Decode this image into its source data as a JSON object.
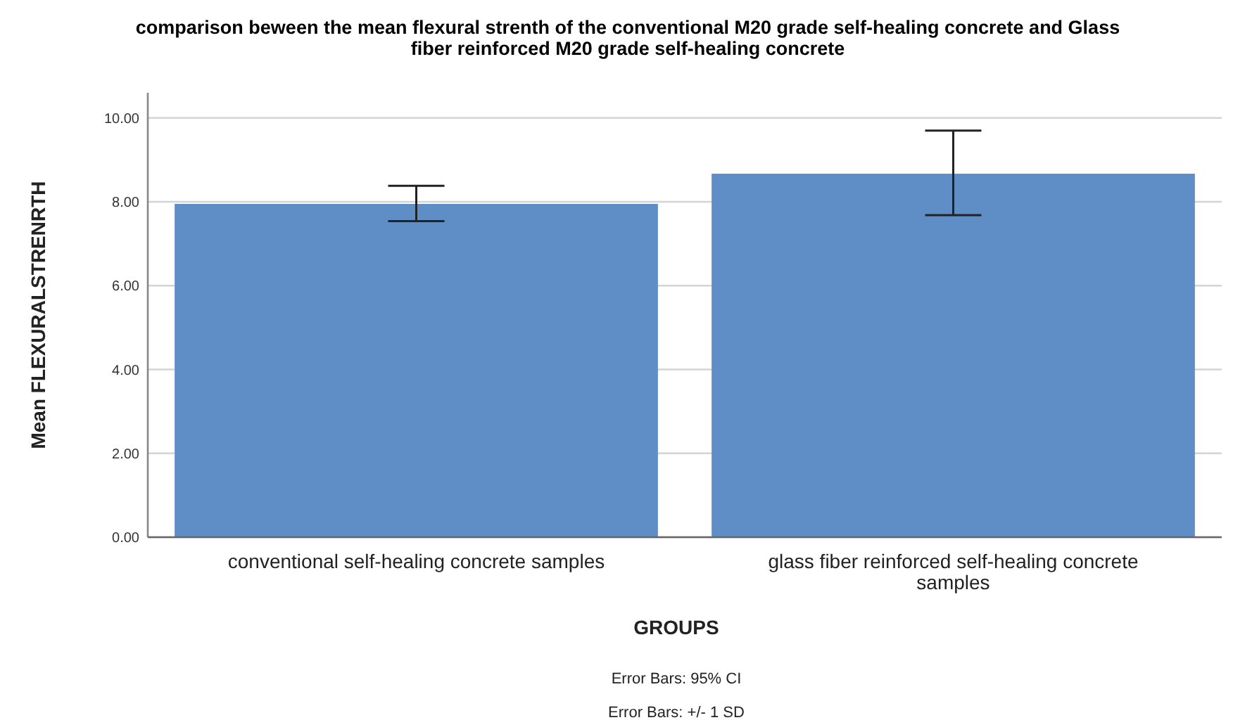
{
  "chart_data": {
    "type": "bar",
    "title": "comparison  beween the mean flexural strenth of the conventional M20 grade self-healing concrete and Glass fiber reinforced M20 grade self-healing concrete",
    "xlabel": "GROUPS",
    "ylabel": "Mean FLEXURALSTRENRTH",
    "categories": [
      "conventional self-healing concrete samples",
      "glass fiber reinforced self-healing concrete samples"
    ],
    "values": [
      7.95,
      8.67
    ],
    "errors": [
      [
        7.54,
        8.38
      ],
      [
        7.68,
        9.7
      ]
    ],
    "color": "#5f8dc6",
    "ylim": [
      0,
      10.6
    ],
    "yticks": [
      {
        "value": 0,
        "label": "0.00"
      },
      {
        "value": 2,
        "label": "2.00"
      },
      {
        "value": 4,
        "label": "4.00"
      },
      {
        "value": 6,
        "label": "6.00"
      },
      {
        "value": 8,
        "label": "8.00"
      },
      {
        "value": 10,
        "label": "10.00"
      }
    ],
    "grid": "y",
    "annotations": [
      "Error Bars: 95% CI",
      "Error Bars: +/- 1 SD"
    ]
  }
}
